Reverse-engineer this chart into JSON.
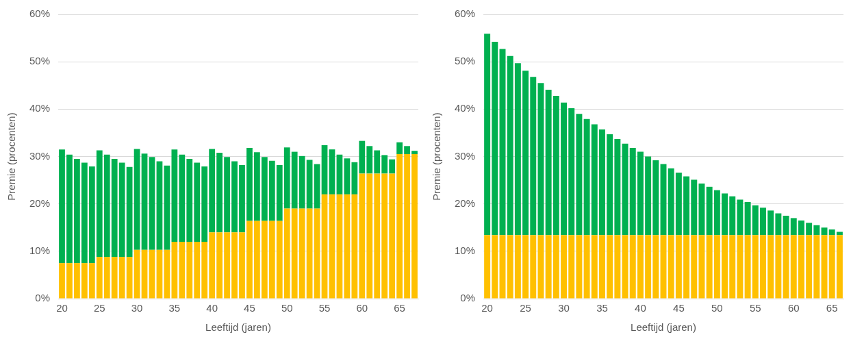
{
  "chart_data": [
    {
      "type": "bar",
      "stacked": true,
      "grid": "y",
      "xlabel": "Leeftijd (jaren)",
      "ylabel": "Premie (procenten)",
      "categories": [
        "20",
        null,
        null,
        null,
        null,
        "25",
        null,
        null,
        null,
        null,
        "30",
        null,
        null,
        null,
        null,
        "35",
        null,
        null,
        null,
        null,
        "40",
        null,
        null,
        null,
        null,
        "45",
        null,
        null,
        null,
        null,
        "50",
        null,
        null,
        null,
        null,
        "55",
        null,
        null,
        null,
        null,
        "60",
        null,
        null,
        null,
        null,
        "65",
        null,
        null
      ],
      "ylim": [
        0,
        60
      ],
      "yticks": [
        {
          "value": 0,
          "label": "0%"
        },
        {
          "value": 10,
          "label": "10%"
        },
        {
          "value": 20,
          "label": "20%"
        },
        {
          "value": 30,
          "label": "30%"
        },
        {
          "value": 40,
          "label": "40%"
        },
        {
          "value": 50,
          "label": "50%"
        },
        {
          "value": 60,
          "label": "60%"
        }
      ],
      "series": [
        {
          "color": "#ffc000",
          "values": [
            7.5,
            7.5,
            7.5,
            7.5,
            7.5,
            8.8,
            8.8,
            8.8,
            8.8,
            8.8,
            10.3,
            10.3,
            10.3,
            10.3,
            10.3,
            12,
            12,
            12,
            12,
            12,
            14,
            14,
            14,
            14,
            14,
            16.4,
            16.4,
            16.4,
            16.4,
            16.4,
            19,
            19,
            19,
            19,
            19,
            22,
            22,
            22,
            22,
            22,
            26.4,
            26.4,
            26.4,
            26.4,
            26.4,
            30.5,
            30.5,
            30.5
          ]
        },
        {
          "color": "#00b050",
          "values": [
            24.0,
            22.9,
            22.0,
            21.2,
            20.4,
            22.5,
            21.6,
            20.7,
            19.9,
            19.0,
            21.3,
            20.3,
            19.6,
            18.7,
            17.8,
            19.5,
            18.4,
            17.5,
            16.7,
            15.9,
            17.6,
            16.8,
            15.9,
            15.0,
            14.2,
            15.4,
            14.5,
            13.5,
            12.7,
            11.8,
            12.9,
            12.0,
            11.1,
            10.3,
            9.4,
            10.4,
            9.5,
            8.4,
            7.6,
            6.8,
            6.9,
            5.8,
            4.9,
            3.9,
            3.0,
            2.5,
            1.7,
            0.7
          ]
        }
      ]
    },
    {
      "type": "bar",
      "stacked": true,
      "grid": "y",
      "xlabel": "Leeftijd (jaren)",
      "ylabel": "Premie (procenten)",
      "categories": [
        "20",
        null,
        null,
        null,
        null,
        "25",
        null,
        null,
        null,
        null,
        "30",
        null,
        null,
        null,
        null,
        "35",
        null,
        null,
        null,
        null,
        "40",
        null,
        null,
        null,
        null,
        "45",
        null,
        null,
        null,
        null,
        "50",
        null,
        null,
        null,
        null,
        "55",
        null,
        null,
        null,
        null,
        "60",
        null,
        null,
        null,
        null,
        "65",
        null
      ],
      "ylim": [
        0,
        60
      ],
      "yticks": [
        {
          "value": 0,
          "label": "0%"
        },
        {
          "value": 10,
          "label": "10%"
        },
        {
          "value": 20,
          "label": "20%"
        },
        {
          "value": 30,
          "label": "30%"
        },
        {
          "value": 40,
          "label": "40%"
        },
        {
          "value": 50,
          "label": "50%"
        },
        {
          "value": 60,
          "label": "60%"
        }
      ],
      "series": [
        {
          "color": "#ffc000",
          "values": [
            13.4,
            13.4,
            13.4,
            13.4,
            13.4,
            13.4,
            13.4,
            13.4,
            13.4,
            13.4,
            13.4,
            13.4,
            13.4,
            13.4,
            13.4,
            13.4,
            13.4,
            13.4,
            13.4,
            13.4,
            13.4,
            13.4,
            13.4,
            13.4,
            13.4,
            13.4,
            13.4,
            13.4,
            13.4,
            13.4,
            13.4,
            13.4,
            13.4,
            13.4,
            13.4,
            13.4,
            13.4,
            13.4,
            13.4,
            13.4,
            13.4,
            13.4,
            13.4,
            13.4,
            13.4,
            13.4,
            13.4
          ]
        },
        {
          "color": "#00b050",
          "values": [
            42.5,
            40.8,
            39.3,
            37.8,
            36.3,
            34.7,
            33.4,
            32.1,
            30.7,
            29.4,
            28.0,
            26.8,
            25.6,
            24.5,
            23.4,
            22.3,
            21.3,
            20.3,
            19.3,
            18.4,
            17.6,
            16.6,
            15.8,
            15.0,
            14.1,
            13.2,
            12.4,
            11.7,
            10.9,
            10.2,
            9.5,
            8.8,
            8.2,
            7.5,
            7.0,
            6.3,
            5.8,
            5.2,
            4.6,
            4.1,
            3.6,
            3.1,
            2.6,
            2.1,
            1.6,
            1.2,
            0.7
          ]
        }
      ]
    }
  ]
}
